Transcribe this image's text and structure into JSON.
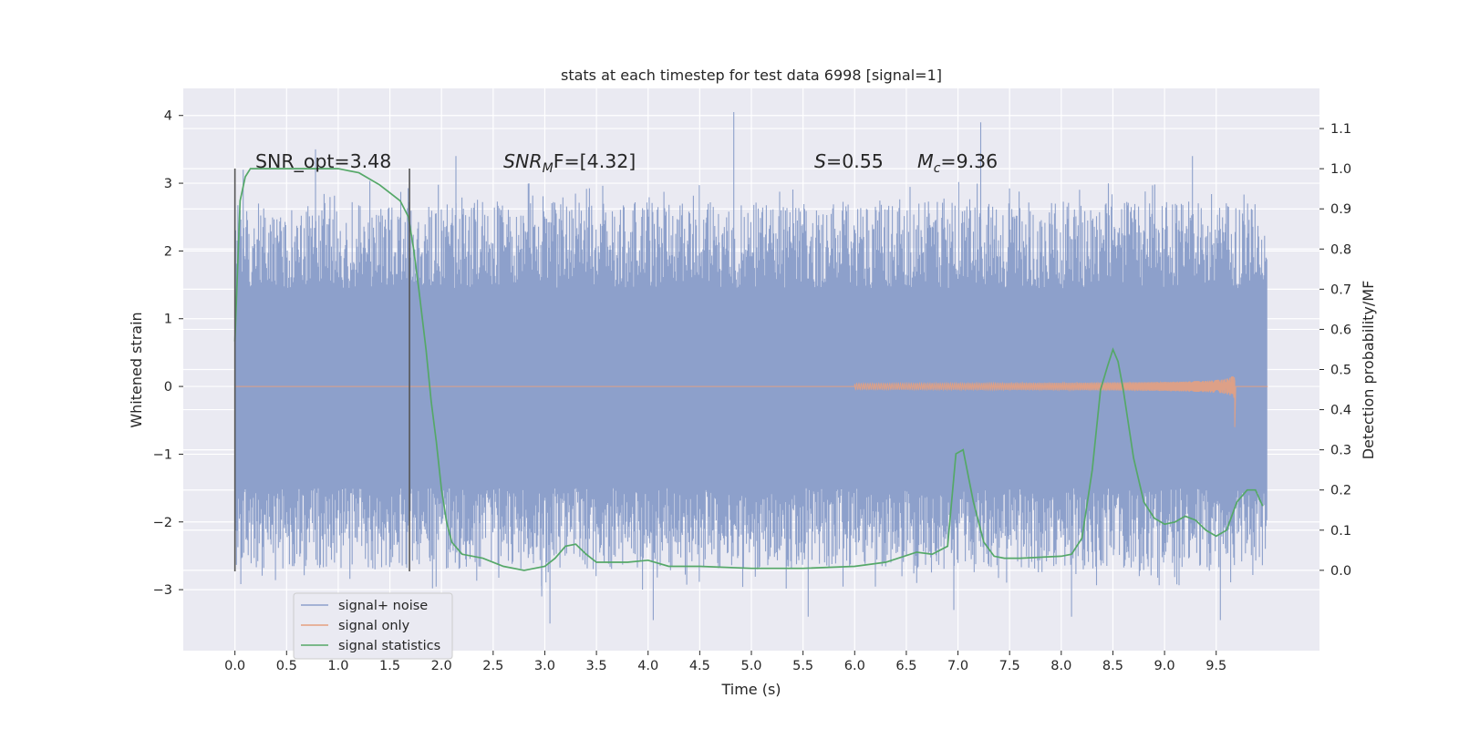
{
  "chart_data": {
    "type": "line",
    "title": "stats at each timestep for test data 6998 [signal=1]",
    "xlabel": "Time (s)",
    "ylabel": "Whitened strain",
    "ylabel_right": "Detection probability/MF",
    "xlim": [
      -0.5,
      10.5
    ],
    "ylim": [
      -3.9,
      4.4
    ],
    "ylim_right": [
      -0.2,
      1.2
    ],
    "x_ticks": [
      "0.0",
      "0.5",
      "1.0",
      "1.5",
      "2.0",
      "2.5",
      "3.0",
      "3.5",
      "4.0",
      "4.5",
      "5.0",
      "5.5",
      "6.0",
      "6.5",
      "7.0",
      "7.5",
      "8.0",
      "8.5",
      "9.0",
      "9.5"
    ],
    "y_ticks": [
      "−3",
      "−2",
      "−1",
      "0",
      "1",
      "2",
      "3",
      "4"
    ],
    "y_right_ticks": [
      "0.0",
      "0.1",
      "0.2",
      "0.3",
      "0.4",
      "0.5",
      "0.6",
      "0.7",
      "0.8",
      "0.9",
      "1.0",
      "1.1"
    ],
    "grid": true,
    "annotations": {
      "snr_opt": "SNR_opt=3.48",
      "snr_mf_main": "SNR",
      "snr_mf_sub": "M",
      "snr_mf_rest": "F=[4.32]",
      "s_var": "S",
      "s_rest": "=0.55",
      "mc_var": "M",
      "mc_sub": "c",
      "mc_rest": "=9.36"
    },
    "vertical_lines": [
      0.0,
      1.69
    ],
    "legend_position": "lower-left",
    "series": [
      {
        "name": "signal+ noise",
        "color": "#8da0cb",
        "x_range": [
          0.0,
          9.99
        ],
        "core_band": [
          -1.5,
          1.45
        ],
        "typical_extremes": [
          -2.7,
          2.7
        ],
        "peaks": [
          {
            "x": 0.08,
            "y": 3.2
          },
          {
            "x": 0.78,
            "y": 3.5
          },
          {
            "x": 2.14,
            "y": 3.4
          },
          {
            "x": 2.97,
            "y": -3.1
          },
          {
            "x": 3.05,
            "y": -3.5
          },
          {
            "x": 4.05,
            "y": -3.45
          },
          {
            "x": 4.83,
            "y": 4.05
          },
          {
            "x": 5.55,
            "y": -3.4
          },
          {
            "x": 6.96,
            "y": -3.3
          },
          {
            "x": 7.22,
            "y": 3.9
          },
          {
            "x": 8.1,
            "y": -3.4
          },
          {
            "x": 9.27,
            "y": 3.4
          },
          {
            "x": 9.54,
            "y": -3.45
          }
        ]
      },
      {
        "name": "signal only",
        "color": "#e5a07f",
        "chirp_start": 6.0,
        "merger_time": 9.68,
        "max_amplitude": 0.45
      },
      {
        "name": "signal statistics",
        "color": "#55a868",
        "axis": "right",
        "x": [
          0.0,
          0.05,
          0.1,
          0.15,
          0.3,
          0.5,
          1.0,
          1.2,
          1.4,
          1.5,
          1.6,
          1.68,
          1.73,
          1.78,
          1.85,
          1.9,
          1.95,
          2.0,
          2.05,
          2.1,
          2.2,
          2.4,
          2.6,
          2.8,
          3.0,
          3.1,
          3.2,
          3.3,
          3.4,
          3.5,
          3.6,
          3.8,
          4.0,
          4.2,
          4.5,
          5.0,
          5.5,
          6.0,
          6.3,
          6.6,
          6.75,
          6.9,
          6.98,
          7.05,
          7.15,
          7.25,
          7.35,
          7.45,
          7.6,
          8.0,
          8.1,
          8.2,
          8.3,
          8.38,
          8.45,
          8.5,
          8.55,
          8.6,
          8.7,
          8.8,
          8.9,
          9.0,
          9.1,
          9.2,
          9.3,
          9.4,
          9.5,
          9.6,
          9.7,
          9.8,
          9.88,
          9.95
        ],
        "values": [
          0.57,
          0.92,
          0.98,
          1.0,
          1.0,
          1.0,
          1.0,
          0.99,
          0.96,
          0.94,
          0.92,
          0.88,
          0.8,
          0.7,
          0.55,
          0.42,
          0.32,
          0.2,
          0.12,
          0.07,
          0.04,
          0.03,
          0.01,
          0.0,
          0.01,
          0.03,
          0.06,
          0.065,
          0.04,
          0.02,
          0.02,
          0.02,
          0.025,
          0.01,
          0.01,
          0.005,
          0.005,
          0.01,
          0.02,
          0.045,
          0.04,
          0.06,
          0.29,
          0.3,
          0.17,
          0.07,
          0.035,
          0.03,
          0.03,
          0.035,
          0.04,
          0.08,
          0.25,
          0.45,
          0.51,
          0.55,
          0.52,
          0.45,
          0.28,
          0.17,
          0.13,
          0.115,
          0.12,
          0.135,
          0.125,
          0.1,
          0.085,
          0.1,
          0.17,
          0.2,
          0.2,
          0.16
        ]
      }
    ]
  }
}
